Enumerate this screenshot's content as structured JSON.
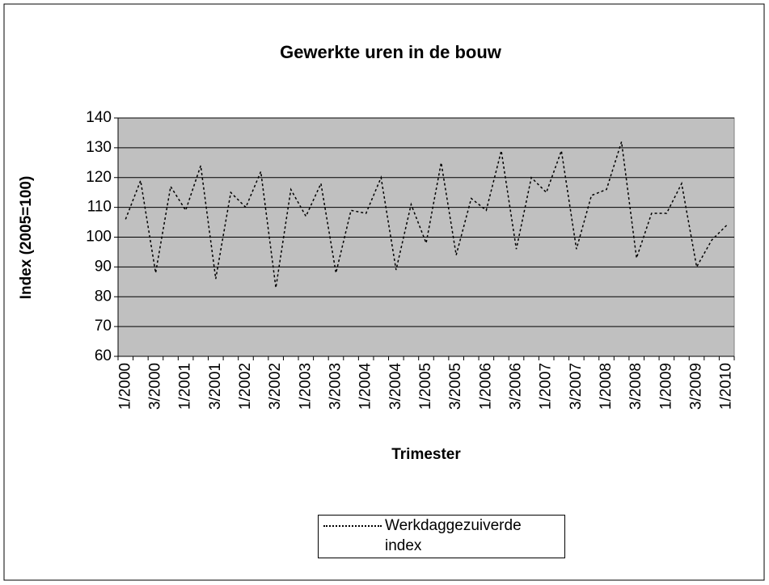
{
  "chart_data": {
    "type": "line",
    "title": "Gewerkte uren in de bouw",
    "x_label": "Trimester",
    "y_label": "Index (2005=100)",
    "categories": [
      "1/2000",
      null,
      "3/2000",
      null,
      "1/2001",
      null,
      "3/2001",
      null,
      "1/2002",
      null,
      "3/2002",
      null,
      "1/2003",
      null,
      "3/2003",
      null,
      "1/2004",
      null,
      "3/2004",
      null,
      "1/2005",
      null,
      "3/2005",
      null,
      "1/2006",
      null,
      "3/2006",
      null,
      "1/2007",
      null,
      "3/2007",
      null,
      "1/2008",
      null,
      "3/2008",
      null,
      "1/2009",
      null,
      "3/2009",
      null,
      "1/2010"
    ],
    "series": [
      {
        "name": "Werkdaggezuiverde index",
        "color": "#000000",
        "values": [
          106,
          119,
          88,
          117,
          109,
          124,
          86,
          115,
          110,
          122,
          83,
          116,
          107,
          118,
          88,
          109,
          108,
          120,
          89,
          111,
          98,
          125,
          94,
          113,
          109,
          129,
          96,
          120,
          115,
          129,
          96,
          114,
          116,
          132,
          93,
          108,
          108,
          118,
          90,
          99,
          104
        ]
      }
    ],
    "ylim": [
      60,
      140
    ],
    "yticks": [
      60,
      70,
      80,
      90,
      100,
      110,
      120,
      130,
      140
    ],
    "grid": true,
    "plot_background": "#c0c0c0",
    "legend_position": "bottom"
  }
}
